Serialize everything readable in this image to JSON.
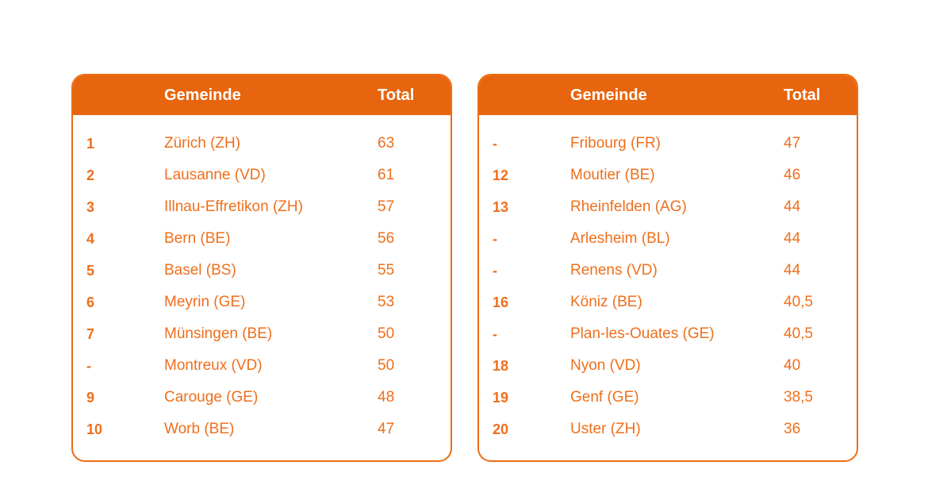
{
  "theme": {
    "accent_orange": "#E7650E",
    "border_orange": "#EC6C12",
    "body_text_orange": "#EF6F1C",
    "header_text_color": "#FFFFFF",
    "page_background": "#FFFFFF"
  },
  "tables": [
    {
      "name": "ranking-1-10",
      "header": {
        "rank": "",
        "gemeinde": "Gemeinde",
        "total": "Total"
      },
      "rows": [
        {
          "rank": "1",
          "gemeinde": "Zürich (ZH)",
          "total": "63"
        },
        {
          "rank": "2",
          "gemeinde": "Lausanne (VD)",
          "total": "61"
        },
        {
          "rank": "3",
          "gemeinde": "Illnau-Effretikon (ZH)",
          "total": "57"
        },
        {
          "rank": "4",
          "gemeinde": "Bern (BE)",
          "total": "56"
        },
        {
          "rank": "5",
          "gemeinde": "Basel (BS)",
          "total": "55"
        },
        {
          "rank": "6",
          "gemeinde": "Meyrin (GE)",
          "total": "53"
        },
        {
          "rank": "7",
          "gemeinde": "Münsingen (BE)",
          "total": "50"
        },
        {
          "rank": "-",
          "gemeinde": "Montreux (VD)",
          "total": "50"
        },
        {
          "rank": "9",
          "gemeinde": "Carouge (GE)",
          "total": "48"
        },
        {
          "rank": "10",
          "gemeinde": "Worb (BE)",
          "total": "47"
        }
      ]
    },
    {
      "name": "ranking-11-20",
      "header": {
        "rank": "",
        "gemeinde": "Gemeinde",
        "total": "Total"
      },
      "rows": [
        {
          "rank": "-",
          "gemeinde": "Fribourg (FR)",
          "total": "47"
        },
        {
          "rank": "12",
          "gemeinde": "Moutier (BE)",
          "total": "46"
        },
        {
          "rank": "13",
          "gemeinde": "Rheinfelden (AG)",
          "total": "44"
        },
        {
          "rank": "-",
          "gemeinde": "Arlesheim (BL)",
          "total": "44"
        },
        {
          "rank": "-",
          "gemeinde": "Renens (VD)",
          "total": "44"
        },
        {
          "rank": "16",
          "gemeinde": "Köniz (BE)",
          "total": "40,5"
        },
        {
          "rank": "-",
          "gemeinde": "Plan-les-Ouates (GE)",
          "total": "40,5"
        },
        {
          "rank": "18",
          "gemeinde": "Nyon (VD)",
          "total": "40"
        },
        {
          "rank": "19",
          "gemeinde": "Genf (GE)",
          "total": "38,5"
        },
        {
          "rank": "20",
          "gemeinde": "Uster (ZH)",
          "total": "36"
        }
      ]
    }
  ]
}
